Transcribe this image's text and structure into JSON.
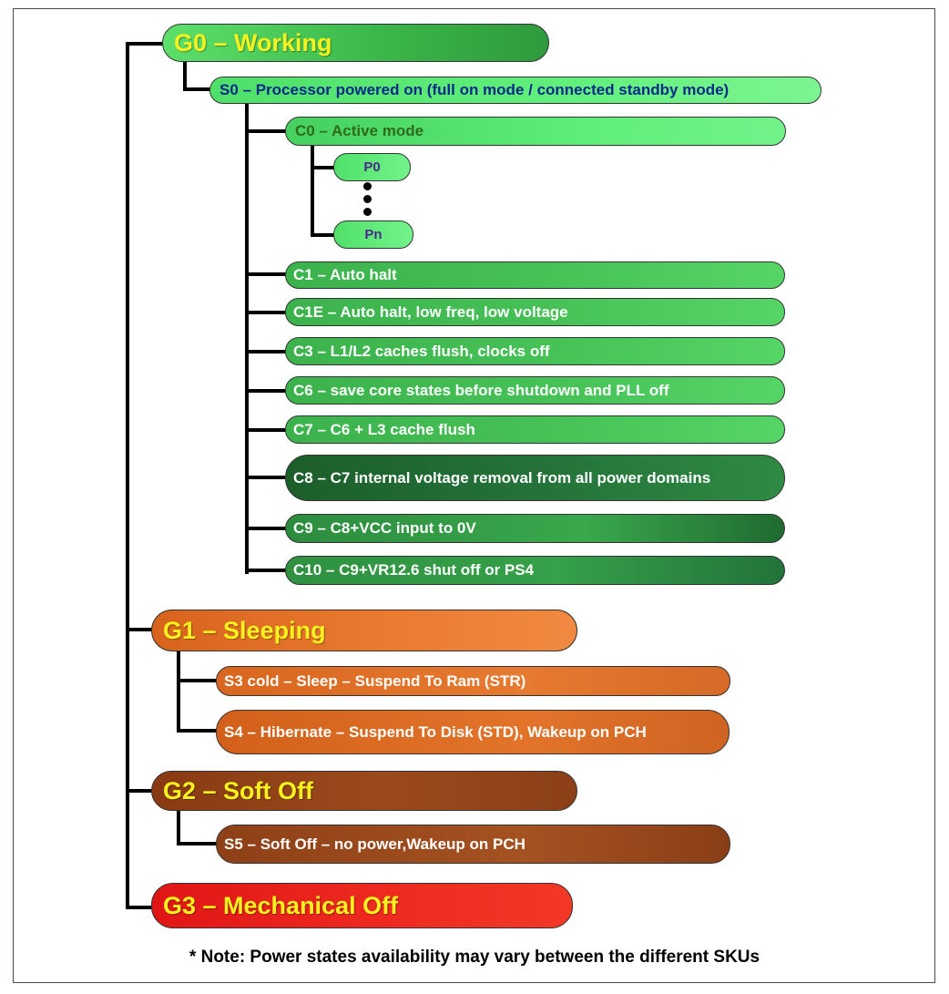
{
  "diagram": {
    "g0": "G0 – Working",
    "s0": "S0 – Processor powered on (full on mode / connected standby mode)",
    "c0": "C0 – Active mode",
    "p0": "P0",
    "pn": "Pn",
    "c1": "C1 – Auto halt",
    "c1e": "C1E – Auto halt, low freq, low voltage",
    "c3": "C3 – L1/L2 caches flush, clocks off",
    "c6": "C6 – save core states before shutdown and PLL off",
    "c7": "C7 – C6 + L3 cache flush",
    "c8": "C8 – C7 internal voltage removal from all power domains",
    "c9": "C9 – C8+VCC input to 0V",
    "c10": "C10 – C9+VR12.6 shut off or PS4",
    "g1": "G1 – Sleeping",
    "s3": "S3 cold – Sleep – Suspend To Ram (STR)",
    "s4": "S4 – Hibernate – Suspend To Disk (STD), Wakeup on PCH",
    "g2": "G2 – Soft Off",
    "s5": "S5 – Soft Off – no power,Wakeup on PCH",
    "g3": "G3 – Mechanical Off",
    "note": "* Note: Power states availability may vary between the different SKUs"
  },
  "colors": {
    "working_green": "#3fbf4f",
    "light_green": "#5ef07a",
    "dark_green": "#1f6e30",
    "sleeping_orange": "#e36a1e",
    "soft_off_brown": "#8a3e14",
    "mech_off_red": "#e81a1a",
    "title_yellow": "#f7f21e"
  }
}
